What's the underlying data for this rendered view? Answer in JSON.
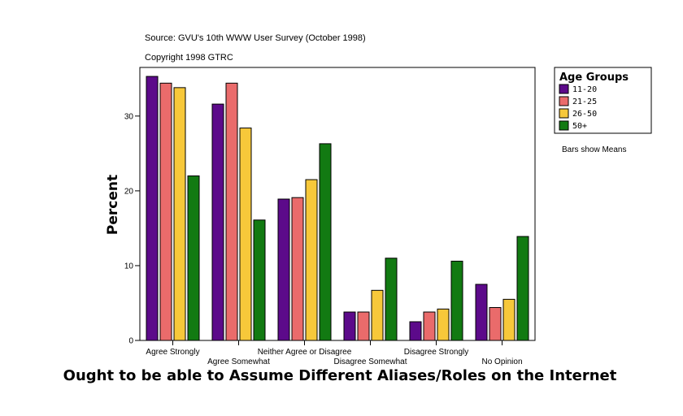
{
  "chart_data": {
    "type": "bar",
    "title": "Ought to be able to Assume Different Aliases/Roles on the Internet",
    "source": "Source: GVU's 10th WWW User Survey (October 1998)",
    "copyright": "Copyright 1998 GTRC",
    "ylabel": "Percent",
    "xlabel": "",
    "ylim": [
      0,
      36.5
    ],
    "yticks": [
      0,
      10,
      20,
      30
    ],
    "note": "Bars show Means",
    "legend_title": "Age Groups",
    "legend_position": "top-right",
    "categories": [
      "Agree Strongly",
      "Agree Somewhat",
      "Neither Agree or Disagree",
      "Disagree Somewhat",
      "Disagree Strongly",
      "No Opinion"
    ],
    "series": [
      {
        "name": "11-20",
        "color": "#5c0a8a",
        "values": [
          35.3,
          31.6,
          18.9,
          3.8,
          2.5,
          7.5
        ]
      },
      {
        "name": "21-25",
        "color": "#ea6b6b",
        "values": [
          34.4,
          34.4,
          19.1,
          3.8,
          3.8,
          4.4
        ]
      },
      {
        "name": "26-50",
        "color": "#f7c83a",
        "values": [
          33.8,
          28.4,
          21.5,
          6.7,
          4.2,
          5.5
        ]
      },
      {
        "name": "50+",
        "color": "#127a12",
        "values": [
          22.0,
          16.1,
          26.3,
          11.0,
          10.6,
          13.9
        ]
      }
    ]
  }
}
